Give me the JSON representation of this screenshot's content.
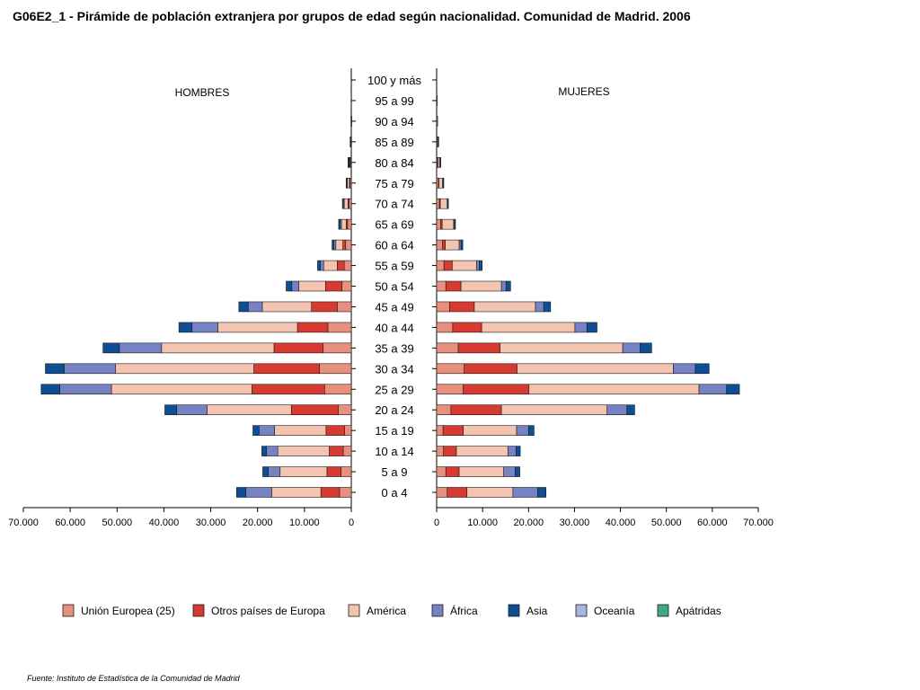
{
  "chart_data": {
    "type": "bar",
    "orientation": "horizontal",
    "stacked": true,
    "title": "G06E2_1 - Pirámide de población extranjera por grupos de edad según nacionalidad. Comunidad de Madrid. 2006",
    "source": "Fuente: Instituto de Estadística de la Comunidad de Madrid",
    "left_panel_label": "HOMBRES",
    "right_panel_label": "MUJERES",
    "categories": [
      "0 a 4",
      "5 a 9",
      "10 a 14",
      "15 a 19",
      "20 a 24",
      "25 a 29",
      "30 a 34",
      "35 a 39",
      "40 a 44",
      "45 a 49",
      "50 a 54",
      "55 a 59",
      "60 a 64",
      "65 a 69",
      "70 a 74",
      "75 a 79",
      "80 a 84",
      "85 a 89",
      "90 a 94",
      "95 a 99",
      "100 y más"
    ],
    "xlim": [
      0,
      70000
    ],
    "x_ticks": [
      "70.000",
      "60.000",
      "50.000",
      "40.000",
      "30.000",
      "20.000",
      "10.000",
      "0"
    ],
    "x_ticks_right": [
      "0",
      "10.000",
      "20.000",
      "30.000",
      "40.000",
      "50.000",
      "60.000",
      "70.000"
    ],
    "legend_position": "bottom",
    "colors": [
      "#e8907e",
      "#d63a30",
      "#f5c4b0",
      "#7583c4",
      "#0d4e95",
      "#a9b4e0",
      "#3daa85"
    ],
    "men": [
      {
        "name": "Unión Europea (25)",
        "values": [
          2500,
          2200,
          1700,
          1400,
          2800,
          5700,
          6800,
          6000,
          5000,
          3000,
          2000,
          1500,
          1200,
          800,
          500,
          300,
          200,
          100,
          50,
          0,
          0
        ]
      },
      {
        "name": "Otros países de Europa",
        "values": [
          4000,
          3000,
          3000,
          4000,
          10000,
          15500,
          14000,
          10500,
          6500,
          5500,
          3500,
          1500,
          600,
          300,
          200,
          100,
          100,
          0,
          0,
          0,
          0
        ]
      },
      {
        "name": "América",
        "values": [
          10500,
          10000,
          11000,
          11000,
          18000,
          30000,
          29500,
          24000,
          17000,
          10500,
          5700,
          2900,
          1500,
          1000,
          800,
          500,
          200,
          100,
          50,
          0,
          0
        ]
      },
      {
        "name": "África",
        "values": [
          5500,
          2500,
          2400,
          3300,
          6500,
          11000,
          11000,
          9000,
          5500,
          3000,
          1500,
          700,
          400,
          300,
          200,
          100,
          100,
          0,
          0,
          0,
          0
        ]
      },
      {
        "name": "Asia",
        "values": [
          2000,
          1200,
          1000,
          1300,
          2500,
          4000,
          4000,
          3500,
          2800,
          2000,
          1200,
          600,
          400,
          300,
          200,
          100,
          100,
          50,
          0,
          0,
          0
        ]
      },
      {
        "name": "Oceanía",
        "values": [
          0,
          0,
          0,
          0,
          0,
          0,
          0,
          0,
          0,
          0,
          0,
          0,
          0,
          0,
          0,
          0,
          0,
          0,
          0,
          0,
          0
        ]
      },
      {
        "name": "Apátridas",
        "values": [
          0,
          0,
          0,
          0,
          0,
          0,
          0,
          0,
          0,
          0,
          0,
          0,
          0,
          0,
          0,
          0,
          0,
          0,
          0,
          0,
          0
        ]
      }
    ],
    "women": [
      {
        "name": "Unión Europea (25)",
        "values": [
          2300,
          2000,
          1500,
          1400,
          3100,
          5800,
          6000,
          4700,
          3500,
          2800,
          2000,
          1600,
          1300,
          900,
          600,
          400,
          200,
          100,
          50,
          0,
          0
        ]
      },
      {
        "name": "Otros países de Europa",
        "values": [
          4300,
          2900,
          2800,
          4400,
          11000,
          14300,
          11500,
          9100,
          6300,
          5400,
          3300,
          1800,
          600,
          300,
          200,
          100,
          100,
          0,
          0,
          0,
          0
        ]
      },
      {
        "name": "América",
        "values": [
          10000,
          9700,
          11200,
          11600,
          23000,
          37000,
          34000,
          26700,
          20300,
          13300,
          8800,
          5300,
          3000,
          2500,
          1500,
          800,
          400,
          200,
          100,
          50,
          0
        ]
      },
      {
        "name": "África",
        "values": [
          5400,
          2500,
          1800,
          2600,
          4300,
          6000,
          4800,
          3800,
          2600,
          1800,
          1000,
          600,
          400,
          200,
          100,
          100,
          50,
          0,
          0,
          0,
          0
        ]
      },
      {
        "name": "Asia",
        "values": [
          1800,
          1000,
          900,
          1200,
          1700,
          2800,
          3000,
          2500,
          2200,
          1500,
          1000,
          600,
          400,
          200,
          100,
          100,
          100,
          50,
          0,
          0,
          0
        ]
      },
      {
        "name": "Oceanía",
        "values": [
          0,
          0,
          0,
          0,
          0,
          0,
          0,
          0,
          0,
          0,
          0,
          0,
          0,
          0,
          0,
          0,
          0,
          0,
          0,
          0,
          0
        ]
      },
      {
        "name": "Apátridas",
        "values": [
          0,
          0,
          0,
          0,
          0,
          0,
          0,
          0,
          0,
          0,
          0,
          0,
          0,
          0,
          0,
          0,
          0,
          0,
          0,
          0,
          0
        ]
      }
    ]
  }
}
